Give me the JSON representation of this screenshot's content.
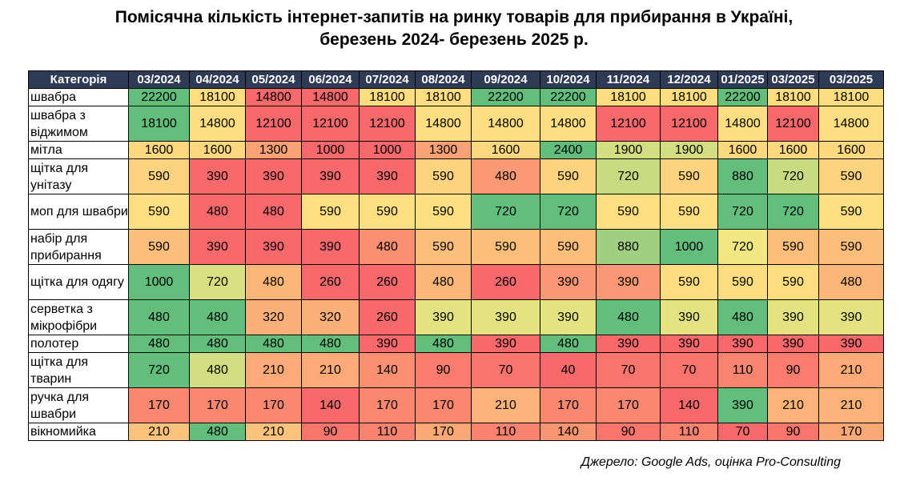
{
  "title": {
    "line1": "Помісячна кількість інтернет-запитів на ринку товарів для прибирання в Україні,",
    "line2": "березень 2024- березень 2025 р."
  },
  "source": "Джерело: Google Ads, оцінка Pro-Consulting",
  "chart_data": {
    "type": "table",
    "corner_header": "Категорія",
    "columns": [
      "03/2024",
      "04/2024",
      "05/2024",
      "06/2024",
      "07/2024",
      "08/2024",
      "09/2024",
      "10/2024",
      "11/2024",
      "12/2024",
      "01/2025",
      "03/2025",
      "03/2025"
    ],
    "rows": [
      {
        "category": "швабра",
        "values": [
          22200,
          18100,
          14800,
          14800,
          18100,
          18100,
          22200,
          22200,
          18100,
          18100,
          22200,
          18100,
          18100
        ]
      },
      {
        "category": "швабра з віджимом",
        "values": [
          18100,
          14800,
          12100,
          12100,
          12100,
          14800,
          14800,
          14800,
          12100,
          12100,
          14800,
          12100,
          14800
        ]
      },
      {
        "category": "мітла",
        "values": [
          1600,
          1600,
          1300,
          1000,
          1000,
          1300,
          1600,
          2400,
          1900,
          1900,
          1600,
          1600,
          1600
        ]
      },
      {
        "category": "щітка для унітазу",
        "values": [
          590,
          390,
          390,
          390,
          390,
          590,
          480,
          590,
          720,
          590,
          880,
          720,
          590
        ]
      },
      {
        "category": "моп для швабри",
        "values": [
          590,
          480,
          480,
          590,
          590,
          590,
          720,
          720,
          590,
          590,
          720,
          720,
          590
        ]
      },
      {
        "category": "набір для прибирання",
        "values": [
          590,
          390,
          390,
          390,
          480,
          590,
          590,
          590,
          880,
          1000,
          720,
          590,
          590
        ]
      },
      {
        "category": "щітка для одягу",
        "values": [
          1000,
          720,
          480,
          260,
          260,
          480,
          260,
          390,
          390,
          590,
          590,
          590,
          480
        ]
      },
      {
        "category": "серветка з мікрофібри",
        "values": [
          480,
          480,
          320,
          320,
          260,
          390,
          390,
          390,
          480,
          390,
          480,
          390,
          390
        ]
      },
      {
        "category": "полотер",
        "values": [
          480,
          480,
          480,
          480,
          390,
          480,
          390,
          480,
          390,
          390,
          390,
          390,
          390
        ]
      },
      {
        "category": "щітка для тварин",
        "values": [
          720,
          480,
          210,
          210,
          140,
          90,
          70,
          40,
          70,
          70,
          110,
          90,
          210
        ]
      },
      {
        "category": "ручка для швабри",
        "values": [
          170,
          170,
          170,
          140,
          170,
          170,
          210,
          170,
          170,
          140,
          390,
          210,
          210
        ]
      },
      {
        "category": "вікномийка",
        "values": [
          210,
          480,
          210,
          90,
          110,
          170,
          110,
          140,
          90,
          110,
          70,
          90,
          170
        ]
      }
    ],
    "colors": {
      "header_bg": "#2f3b55",
      "scale_low": "#f8696b",
      "scale_mid": "#ffeb84",
      "scale_high": "#63be7b"
    }
  }
}
